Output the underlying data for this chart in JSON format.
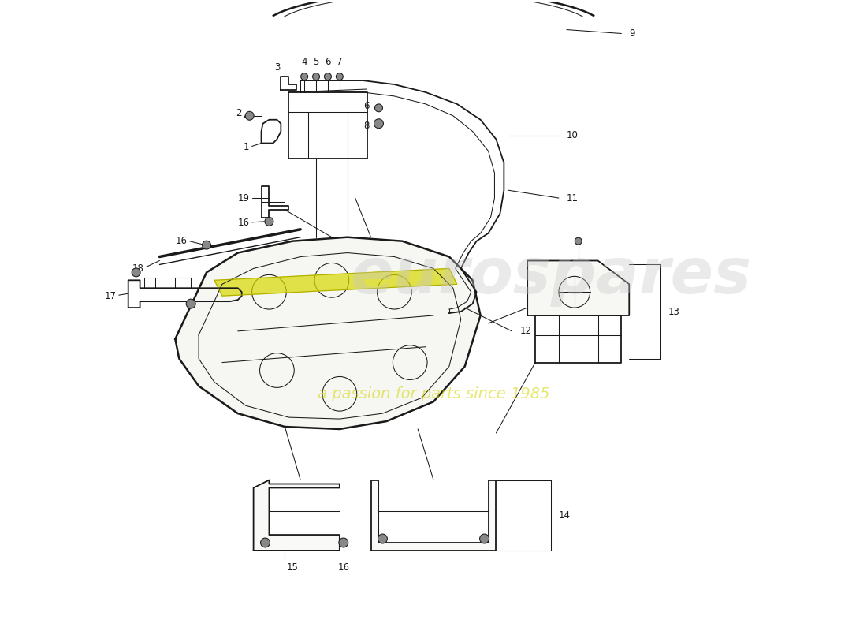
{
  "background_color": "#ffffff",
  "line_color": "#1a1a1a",
  "wm1_text": "eurospares",
  "wm1_color": "#c8c8c8",
  "wm1_alpha": 0.38,
  "wm2_text": "a passion for parts since 1985",
  "wm2_color": "#d4d400",
  "wm2_alpha": 0.55,
  "yellow_strip_color": "#d8d800",
  "label_fontsize": 8.5,
  "lw_main": 1.3,
  "lw_thin": 0.75,
  "lw_thick": 1.8
}
